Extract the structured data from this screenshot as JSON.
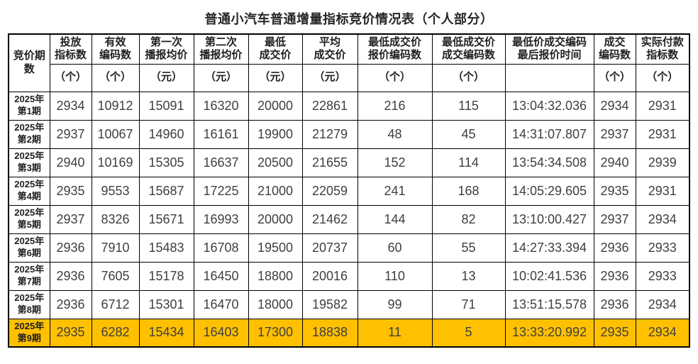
{
  "title": "普通小汽车普通增量指标竞价情况表（个人部分）",
  "colors": {
    "highlight_row": "#FFC000",
    "border": "#000000",
    "data_text": "#3f3f3f",
    "header_text": "#1f1f1f",
    "background": "#ffffff"
  },
  "table": {
    "period_header_lines": [
      "竞价期",
      "数"
    ],
    "columns": [
      {
        "lines": [
          "投放",
          "指标数"
        ],
        "unit": "（个）"
      },
      {
        "lines": [
          "有效",
          "编码数"
        ],
        "unit": "（个）"
      },
      {
        "lines": [
          "第一次",
          "播报均价"
        ],
        "unit": "（元）"
      },
      {
        "lines": [
          "第二次",
          "播报均价"
        ],
        "unit": "（元）"
      },
      {
        "lines": [
          "最低",
          "成交价"
        ],
        "unit": "（元）"
      },
      {
        "lines": [
          "平均",
          "成交价"
        ],
        "unit": "（元）"
      },
      {
        "lines": [
          "最低成交价",
          "报价编码数"
        ],
        "unit": "（个）"
      },
      {
        "lines": [
          "最低成交价",
          "成交编码数"
        ],
        "unit": "（个）"
      },
      {
        "lines": [
          "最低价成交编码",
          "最后报价时间"
        ],
        "unit": ""
      },
      {
        "lines": [
          "成交",
          "编码数"
        ],
        "unit": "（个）"
      },
      {
        "lines": [
          "实际付款",
          "指标数"
        ],
        "unit": "（个）"
      }
    ],
    "rows": [
      {
        "period": [
          "2025年",
          "第1期"
        ],
        "highlight": false,
        "values": [
          "2934",
          "10912",
          "15091",
          "16320",
          "20000",
          "22861",
          "216",
          "115",
          "13:04:32.036",
          "2934",
          "2931"
        ]
      },
      {
        "period": [
          "2025年",
          "第2期"
        ],
        "highlight": false,
        "values": [
          "2937",
          "10067",
          "14960",
          "16161",
          "19900",
          "21279",
          "48",
          "45",
          "14:31:07.807",
          "2937",
          "2931"
        ]
      },
      {
        "period": [
          "2025年",
          "第3期"
        ],
        "highlight": false,
        "values": [
          "2940",
          "10169",
          "15305",
          "16637",
          "20500",
          "21655",
          "152",
          "114",
          "13:54:34.508",
          "2940",
          "2939"
        ]
      },
      {
        "period": [
          "2025年",
          "第4期"
        ],
        "highlight": false,
        "values": [
          "2935",
          "9553",
          "15687",
          "17225",
          "21000",
          "22059",
          "241",
          "168",
          "14:05:29.605",
          "2935",
          "2931"
        ]
      },
      {
        "period": [
          "2025年",
          "第5期"
        ],
        "highlight": false,
        "values": [
          "2937",
          "8326",
          "15671",
          "16993",
          "20000",
          "21462",
          "144",
          "82",
          "13:10:00.427",
          "2937",
          "2934"
        ]
      },
      {
        "period": [
          "2025年",
          "第6期"
        ],
        "highlight": false,
        "values": [
          "2936",
          "7910",
          "15483",
          "16708",
          "19500",
          "20737",
          "60",
          "55",
          "14:27:33.394",
          "2936",
          "2933"
        ]
      },
      {
        "period": [
          "2025年",
          "第7期"
        ],
        "highlight": false,
        "values": [
          "2936",
          "7605",
          "15178",
          "16450",
          "18800",
          "20016",
          "110",
          "13",
          "10:02:41.536",
          "2936",
          "2933"
        ]
      },
      {
        "period": [
          "2025年",
          "第8期"
        ],
        "highlight": false,
        "values": [
          "2936",
          "6712",
          "15301",
          "16470",
          "18000",
          "19582",
          "99",
          "71",
          "13:51:15.578",
          "2936",
          "2934"
        ]
      },
      {
        "period": [
          "2025年",
          "第9期"
        ],
        "highlight": true,
        "values": [
          "2935",
          "6282",
          "15434",
          "16403",
          "17300",
          "18838",
          "11",
          "5",
          "13:33:20.992",
          "2935",
          "2934"
        ]
      }
    ]
  }
}
